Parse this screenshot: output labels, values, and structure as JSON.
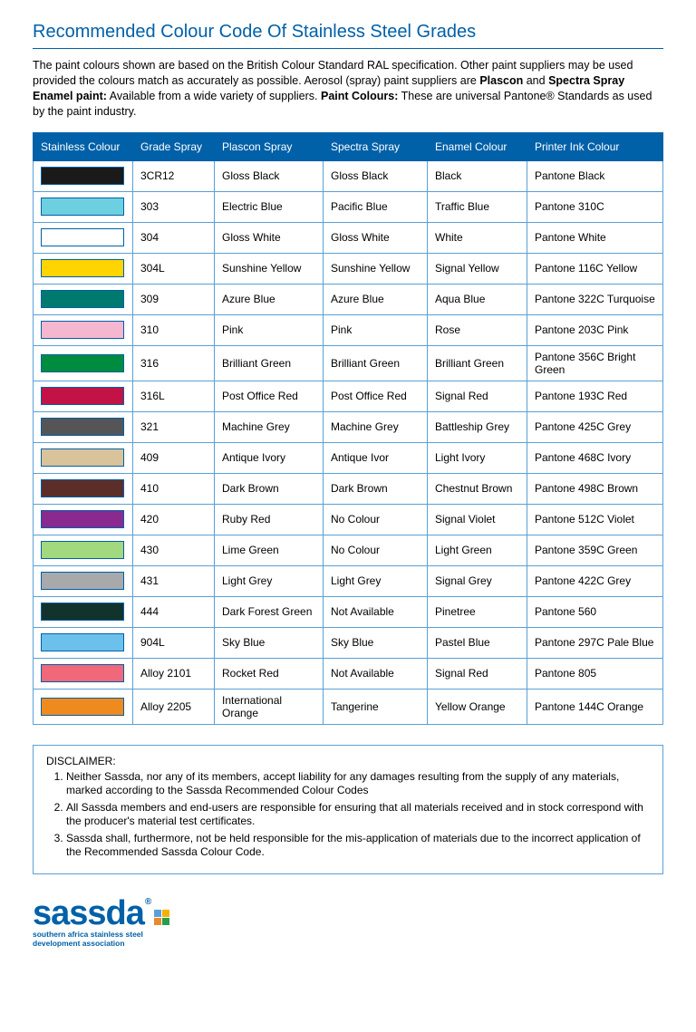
{
  "title": "Recommended Colour Code Of Stainless Steel Grades",
  "intro": {
    "p1": "The paint colours shown are based on the British Colour Standard RAL specification. Other paint suppliers may be used provided the colours match as accurately as possible. Aerosol (spray) paint suppliers are ",
    "b1": "Plascon",
    "p2": " and ",
    "b2": "Spectra Spray Enamel paint:",
    "p3": " Available from a wide variety of suppliers. ",
    "b3": "Paint Colours:",
    "p4": "  These are universal Pantone® Standards as used by the paint industry."
  },
  "headers": {
    "c0": "Stainless Colour",
    "c1": "Grade Spray",
    "c2": "Plascon Spray",
    "c3": "Spectra Spray",
    "c4": "Enamel Colour",
    "c5": "Printer Ink Colour"
  },
  "rows": [
    {
      "swatch": "#1a1a1a",
      "grade": "3CR12",
      "plascon": "Gloss Black",
      "spectra": "Gloss Black",
      "enamel": "Black",
      "printer": "Pantone Black"
    },
    {
      "swatch": "#6dd0e0",
      "grade": "303",
      "plascon": "Electric Blue",
      "spectra": "Pacific Blue",
      "enamel": "Traffic Blue",
      "printer": "Pantone 310C"
    },
    {
      "swatch": "#ffffff",
      "grade": "304",
      "plascon": "Gloss White",
      "spectra": "Gloss White",
      "enamel": "White",
      "printer": "Pantone White"
    },
    {
      "swatch": "#ffd400",
      "grade": "304L",
      "plascon": "Sunshine Yellow",
      "spectra": "Sunshine Yellow",
      "enamel": "Signal Yellow",
      "printer": "Pantone 116C Yellow"
    },
    {
      "swatch": "#007a6e",
      "grade": "309",
      "plascon": "Azure Blue",
      "spectra": "Azure Blue",
      "enamel": "Aqua Blue",
      "printer": "Pantone 322C Turquoise"
    },
    {
      "swatch": "#f5b6d0",
      "grade": "310",
      "plascon": "Pink",
      "spectra": "Pink",
      "enamel": "Rose",
      "printer": "Pantone 203C Pink"
    },
    {
      "swatch": "#008c3f",
      "grade": "316",
      "plascon": "Brilliant Green",
      "spectra": "Brilliant Green",
      "enamel": "Brilliant Green",
      "printer": "Pantone 356C Bright Green"
    },
    {
      "swatch": "#c31245",
      "grade": "316L",
      "plascon": "Post Office Red",
      "spectra": "Post Office Red",
      "enamel": "Signal Red",
      "printer": "Pantone 193C Red"
    },
    {
      "swatch": "#555558",
      "grade": "321",
      "plascon": "Machine Grey",
      "spectra": "Machine Grey",
      "enamel": "Battleship Grey",
      "printer": "Pantone 425C Grey"
    },
    {
      "swatch": "#d8c39a",
      "grade": "409",
      "plascon": "Antique Ivory",
      "spectra": "Antique Ivor",
      "enamel": "Light Ivory",
      "printer": "Pantone 468C Ivory"
    },
    {
      "swatch": "#5c2e2a",
      "grade": "410",
      "plascon": "Dark Brown",
      "spectra": "Dark Brown",
      "enamel": "Chestnut Brown",
      "printer": "Pantone 498C Brown"
    },
    {
      "swatch": "#8a2a8f",
      "grade": "420",
      "plascon": "Ruby Red",
      "spectra": "No Colour",
      "enamel": "Signal Violet",
      "printer": "Pantone 512C Violet"
    },
    {
      "swatch": "#a3d97e",
      "grade": "430",
      "plascon": "Lime Green",
      "spectra": "No Colour",
      "enamel": "Light Green",
      "printer": "Pantone 359C Green"
    },
    {
      "swatch": "#a8a9ab",
      "grade": "431",
      "plascon": "Light Grey",
      "spectra": "Light Grey",
      "enamel": "Signal Grey",
      "printer": "Pantone 422C Grey"
    },
    {
      "swatch": "#12332b",
      "grade": "444",
      "plascon": "Dark Forest Green",
      "spectra": "Not Available",
      "enamel": "Pinetree",
      "printer": "Pantone 560"
    },
    {
      "swatch": "#6cc0ec",
      "grade": "904L",
      "plascon": "Sky Blue",
      "spectra": "Sky Blue",
      "enamel": "Pastel Blue",
      "printer": "Pantone 297C Pale Blue"
    },
    {
      "swatch": "#f0687a",
      "grade": "Alloy 2101",
      "plascon": "Rocket Red",
      "spectra": "Not Available",
      "enamel": "Signal Red",
      "printer": "Pantone 805"
    },
    {
      "swatch": "#ef8a1f",
      "grade": "Alloy 2205",
      "plascon": "International Orange",
      "spectra": "Tangerine",
      "enamel": "Yellow Orange",
      "printer": "Pantone 144C Orange"
    }
  ],
  "disclaimer": {
    "title": "DISCLAIMER:",
    "items": [
      "Neither Sassda, nor any of its members, accept liability for any damages resulting from the supply of any materials, marked according to the Sassda Recommended Colour Codes",
      "All Sassda members and end-users are responsible for ensuring that all materials received and in stock correspond with the producer's material test certificates.",
      "Sassda shall, furthermore, not be held responsible for the mis-application of materials due to the incorrect application of the Recommended Sassda Colour Code."
    ]
  },
  "logo": {
    "word": "sassda",
    "sub1": "southern africa stainless steel",
    "sub2": "development association",
    "squares": [
      "#5aa0d6",
      "#f5b100",
      "#e98a2e",
      "#2a9d4a"
    ]
  }
}
